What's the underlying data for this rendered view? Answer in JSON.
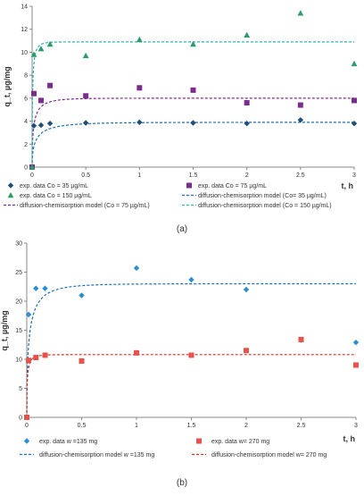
{
  "chart_data": [
    {
      "type": "scatter",
      "caption": "(a)",
      "xlabel": "t, h",
      "ylabel": "q_t, µg/mg",
      "xlim": [
        0,
        3
      ],
      "ylim": [
        0,
        14
      ],
      "xticks": [
        "0",
        "0.5",
        "1",
        "1.5",
        "2",
        "2.5",
        "3"
      ],
      "yticks": [
        "0",
        "2",
        "4",
        "6",
        "8",
        "10",
        "12",
        "14"
      ],
      "grid": false,
      "legend_position": "bottom",
      "series": [
        {
          "name": "exp. data Co = 35 µg/mL",
          "kind": "points",
          "marker": "diamond",
          "color": "#1f4e79",
          "x": [
            0,
            0.0167,
            0.0833,
            0.1667,
            0.5,
            1,
            1.5,
            2,
            2.5,
            3
          ],
          "y": [
            0,
            3.6,
            3.65,
            3.8,
            3.85,
            3.9,
            3.85,
            3.8,
            4.1,
            3.8
          ]
        },
        {
          "name": "exp. data Co = 75 µg/mL",
          "kind": "points",
          "marker": "square",
          "color": "#7b2d8e",
          "x": [
            0,
            0.0167,
            0.0833,
            0.1667,
            0.5,
            1,
            1.5,
            2,
            2.5,
            3
          ],
          "y": [
            0,
            6.4,
            5.8,
            7.1,
            6.2,
            6.9,
            6.7,
            5.6,
            5.4,
            5.8
          ]
        },
        {
          "name": "exp. data Co = 150 µg/mL",
          "kind": "points",
          "marker": "triangle",
          "color": "#2e9b6b",
          "x": [
            0,
            0.0167,
            0.0833,
            0.1667,
            0.5,
            1,
            1.5,
            2,
            2.5,
            3
          ],
          "y": [
            0,
            9.8,
            10.3,
            10.7,
            9.7,
            11.1,
            10.7,
            11.5,
            13.4,
            9.0
          ]
        },
        {
          "name": "diffusion-chemisorption model (Co= 35 µg/mL)",
          "kind": "model",
          "qe": 3.9,
          "k": 1.2,
          "color": "#1f6fb2"
        },
        {
          "name": "diffusion-chemisorption model (Co = 75 µg/mL)",
          "kind": "model",
          "qe": 6.0,
          "k": 1.8,
          "color": "#7b2d8e"
        },
        {
          "name": "diffusion-chemisorption model (Co = 150 µg/mL)",
          "kind": "model",
          "qe": 10.9,
          "k": 3.4,
          "color": "#2bb3b3"
        }
      ],
      "legend_order": [
        0,
        1,
        2,
        3,
        4,
        5
      ]
    },
    {
      "type": "scatter",
      "caption": "(b)",
      "xlabel": "t, h",
      "ylabel": "q_t, µg/mg",
      "xlim": [
        0,
        3
      ],
      "ylim": [
        0,
        30
      ],
      "xticks": [
        "0",
        "0.5",
        "1",
        "1.5",
        "2",
        "2.5",
        "3"
      ],
      "yticks": [
        "0",
        "5",
        "10",
        "15",
        "20",
        "25",
        "30"
      ],
      "grid": false,
      "legend_position": "bottom",
      "series": [
        {
          "name": "exp. data w =135 mg",
          "kind": "points",
          "marker": "diamond",
          "color": "#2a8fd0",
          "x": [
            0,
            0.0167,
            0.0833,
            0.1667,
            0.5,
            1,
            1.5,
            2,
            2.5,
            3
          ],
          "y": [
            0,
            17.7,
            22.2,
            22.2,
            21.0,
            25.7,
            23.7,
            22.0,
            13.3,
            12.9
          ]
        },
        {
          "name": "exp. data w= 270 mg",
          "kind": "points",
          "marker": "square",
          "color": "#e8524a",
          "x": [
            0,
            0.0167,
            0.0833,
            0.1667,
            0.5,
            1,
            1.5,
            2,
            2.5,
            3
          ],
          "y": [
            0,
            9.8,
            10.3,
            10.7,
            9.7,
            11.1,
            10.7,
            11.5,
            13.4,
            9.0
          ]
        },
        {
          "name": "diffusion-chemisorption model w =135 mg",
          "kind": "model",
          "qe": 23.0,
          "k": 1.5,
          "color": "#1f6fb2"
        },
        {
          "name": "diffusion-chemisorption model w= 270 mg",
          "kind": "model",
          "qe": 10.8,
          "k": 3.0,
          "color": "#c0392b"
        }
      ],
      "legend_order": [
        0,
        1,
        2,
        3
      ]
    }
  ]
}
